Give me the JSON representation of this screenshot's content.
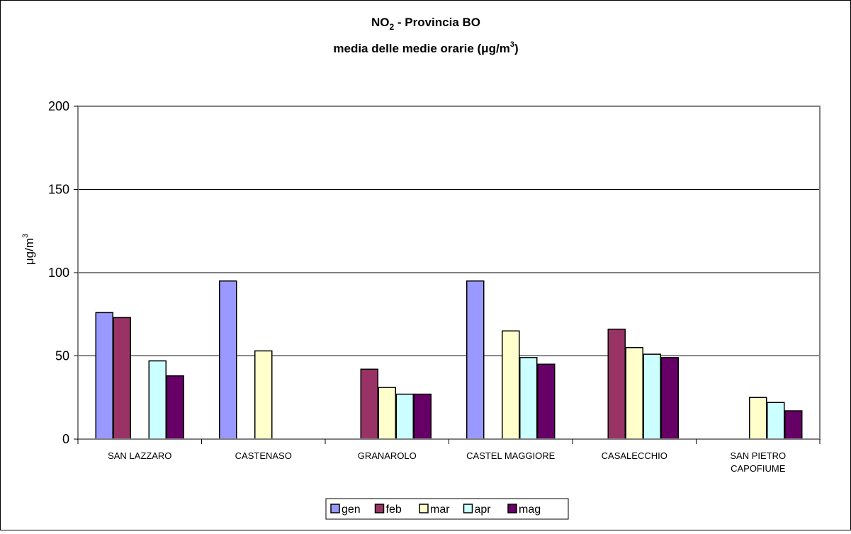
{
  "chart_data": {
    "type": "bar",
    "title_line1_main": "NO",
    "title_line1_sub": "2",
    "title_line1_rest": " - Provincia BO",
    "title_line2_main": "media delle medie orarie (μg/m",
    "title_line2_sup": "3",
    "title_line2_rest": ")",
    "ylabel_main": "μg/m",
    "ylabel_sup": "3",
    "ylim": [
      0,
      200
    ],
    "yticks": [
      0,
      50,
      100,
      150,
      200
    ],
    "categories": [
      [
        "SAN LAZZARO"
      ],
      [
        "CASTENASO"
      ],
      [
        "GRANAROLO"
      ],
      [
        "CASTEL MAGGIORE"
      ],
      [
        "CASALECCHIO"
      ],
      [
        "SAN PIETRO",
        "CAPOFIUME"
      ]
    ],
    "series": [
      {
        "name": "gen",
        "color": "#9999FF",
        "values": [
          76,
          95,
          null,
          95,
          null,
          null
        ]
      },
      {
        "name": "feb",
        "color": "#993366",
        "values": [
          73,
          null,
          42,
          null,
          66,
          null
        ]
      },
      {
        "name": "mar",
        "color": "#FFFFCC",
        "values": [
          null,
          53,
          31,
          65,
          55,
          25
        ]
      },
      {
        "name": "apr",
        "color": "#CCFFFF",
        "values": [
          47,
          null,
          27,
          49,
          51,
          22
        ]
      },
      {
        "name": "mag",
        "color": "#660066",
        "values": [
          38,
          null,
          27,
          45,
          49,
          17
        ]
      }
    ],
    "grid": true,
    "legend_position": "bottom"
  }
}
